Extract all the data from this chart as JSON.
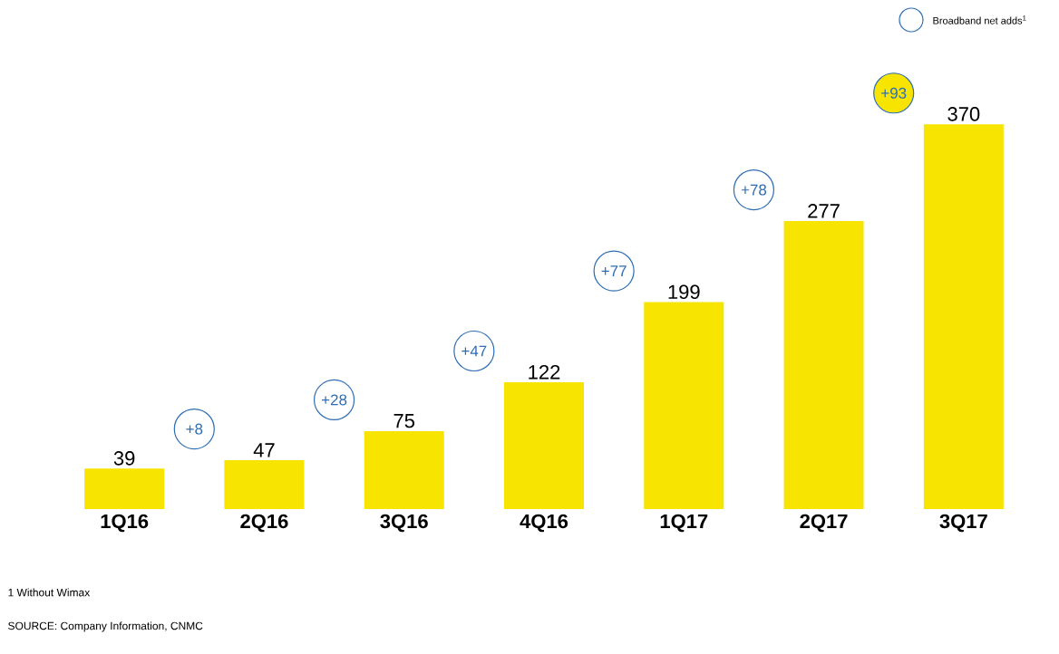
{
  "chart_data": {
    "type": "bar",
    "categories": [
      "1Q16",
      "2Q16",
      "3Q16",
      "4Q16",
      "1Q17",
      "2Q17",
      "3Q17"
    ],
    "values": [
      39,
      47,
      75,
      122,
      199,
      277,
      370
    ],
    "color": "#f7e400",
    "data_labels": true,
    "annotations": [
      "+8",
      "+28",
      "+47",
      "+77",
      "+78",
      "+93",
      "Broadband net adds$^{1}$",
      "1 Without Wimax",
      "SOURCE: Company Information, CNMC"
    ]
  }
}
